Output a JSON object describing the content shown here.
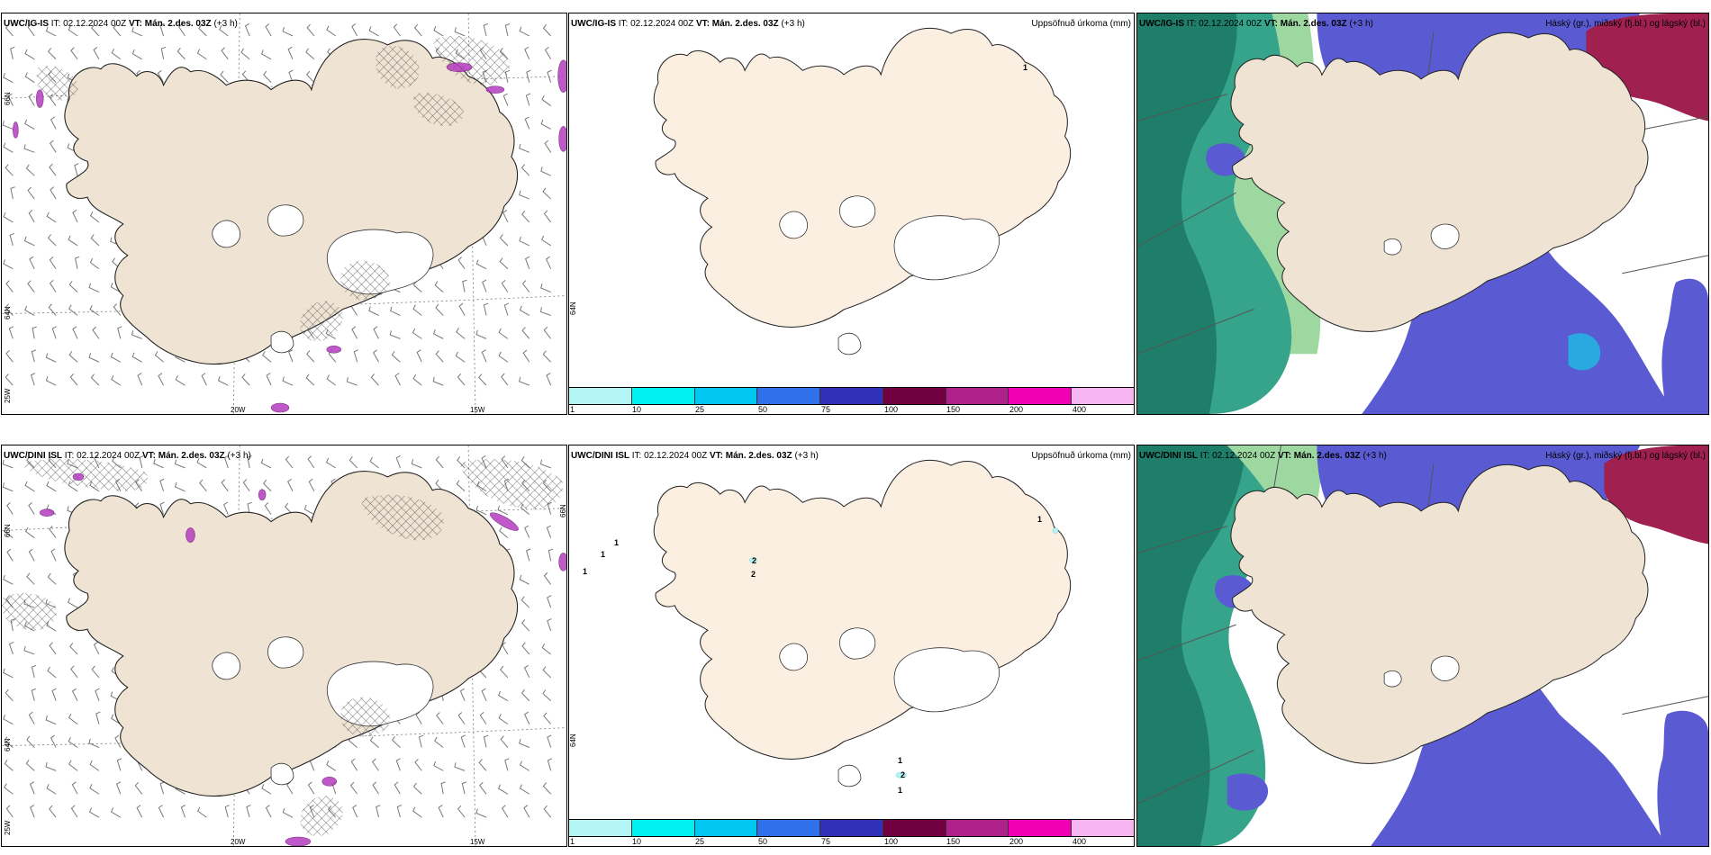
{
  "colors": {
    "land": "#efe3d3",
    "land_light": "#fbefe2",
    "glacier": "#ffffff",
    "precip_scale": [
      "#b3f5f5",
      "#00f0f0",
      "#00c8f0",
      "#3070e8",
      "#3030b8",
      "#700040",
      "#b0208a",
      "#f000b0",
      "#f6b4f0"
    ],
    "cloud_high": "#5a5ad2",
    "cloud_mid": "#2cae80",
    "cloud_low": "#a02050"
  },
  "icons": [
    "wind-barb-icon",
    "hatch-pattern-icon",
    "coastline-icon"
  ],
  "rows": [
    {
      "model": "UWC/IG-IS",
      "it_label": "IT:",
      "it_value": "02.12.2024 00Z",
      "vt_label": "VT: Mán. 2.des. 03Z",
      "lead": "(+3 h)",
      "wind": {
        "lon": [
          "20W",
          "15W"
        ],
        "lat": [
          "66N",
          "64N"
        ],
        "lat_sw": "25W"
      },
      "precip": {
        "title": "Uppsöfnuð úrkoma (mm)",
        "labels": [
          "1",
          "10",
          "25",
          "50",
          "75",
          "100",
          "150",
          "200",
          "400"
        ],
        "values": [
          "1"
        ],
        "lat": "64N"
      },
      "cloud": {
        "title": "Háský (gr.), miðský (fj.bl.) og lágský (bl.)"
      }
    },
    {
      "model": "UWC/DINI ISL",
      "it_label": "IT:",
      "it_value": "02.12.2024 00Z",
      "vt_label": "VT: Mán. 2.des. 03Z",
      "lead": "(+3 h)",
      "wind": {
        "lon": [
          "20W",
          "15W"
        ],
        "lat": [
          "66N",
          "64N"
        ],
        "lat_sw": "25W",
        "lat_e": "66N"
      },
      "precip": {
        "title": "Uppsöfnuð úrkoma (mm)",
        "labels": [
          "1",
          "10",
          "25",
          "50",
          "75",
          "100",
          "150",
          "200",
          "400"
        ],
        "values": [
          "1",
          "1",
          "1",
          "1",
          "2",
          "2",
          "1",
          "2",
          "1"
        ],
        "lat": "64N"
      },
      "cloud": {
        "title": "Háský (gr.), miðský (fj.bl.) og lágský (bl.)"
      }
    }
  ]
}
